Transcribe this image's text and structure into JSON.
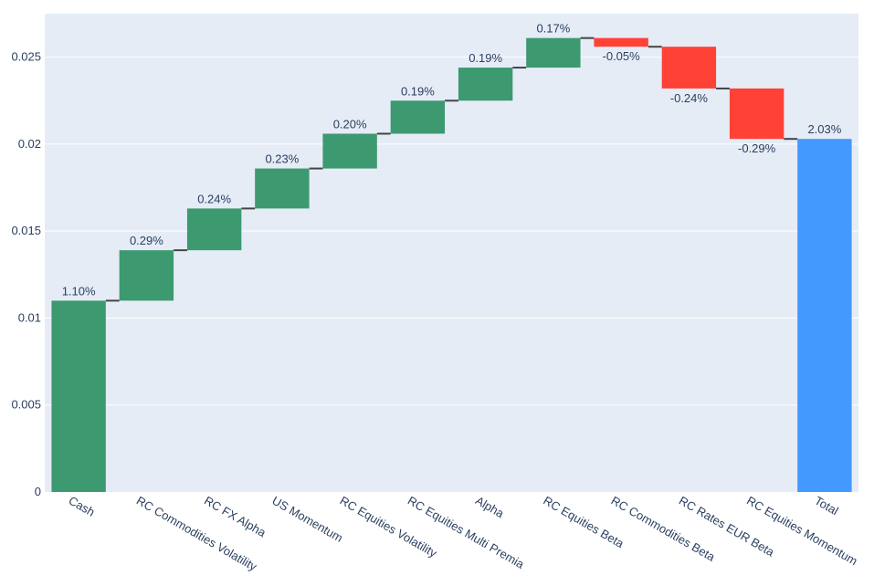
{
  "chart_data": {
    "type": "waterfall",
    "categories": [
      "Cash",
      "RC Commodities Volatility",
      "RC FX Alpha",
      "US Momentum",
      "RC Equities Volatility",
      "RC Equities Multi Premia",
      "Alpha",
      "RC Equities Beta",
      "RC Commodities Beta",
      "RC Rates EUR Beta",
      "RC Equities Momentum",
      "Total"
    ],
    "values": [
      0.011,
      0.0029,
      0.0024,
      0.0023,
      0.002,
      0.0019,
      0.0019,
      0.0017,
      -0.0005,
      -0.0024,
      -0.0029,
      0.0203
    ],
    "measures": [
      "relative",
      "relative",
      "relative",
      "relative",
      "relative",
      "relative",
      "relative",
      "relative",
      "relative",
      "relative",
      "relative",
      "total"
    ],
    "data_labels": [
      "1.10%",
      "0.29%",
      "0.24%",
      "0.23%",
      "0.20%",
      "0.19%",
      "0.19%",
      "0.17%",
      "-0.05%",
      "-0.24%",
      "-0.29%",
      "2.03%"
    ],
    "y_ticks": [
      0,
      0.005,
      0.01,
      0.015,
      0.02,
      0.025
    ],
    "y_tick_labels": [
      "0",
      "0.005",
      "0.01",
      "0.015",
      "0.02",
      "0.025"
    ],
    "ylim": [
      0,
      0.0275
    ],
    "grid": true,
    "colors": {
      "increasing": "#3d9970",
      "decreasing": "#ff4136",
      "total": "#4499ff",
      "connector": "#444444",
      "plot_bg": "#e5ecf6",
      "grid": "#ffffff",
      "text": "#2a3f5f"
    },
    "title": "",
    "xlabel": "",
    "ylabel": ""
  }
}
